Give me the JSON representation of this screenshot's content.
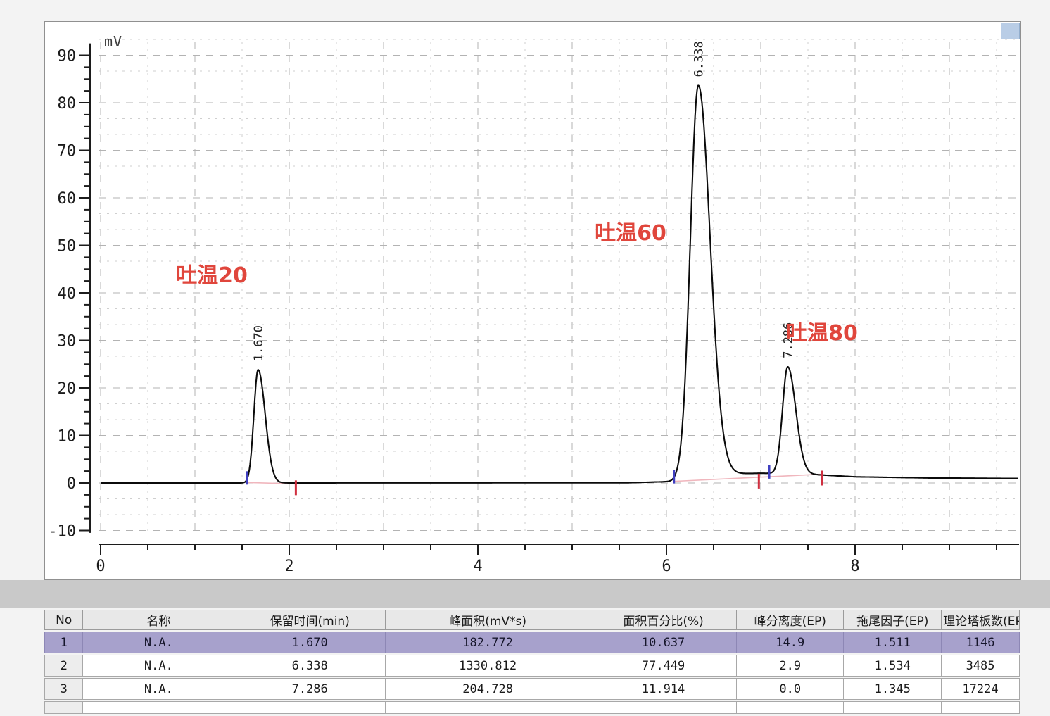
{
  "colors": {
    "trace": "#0b0b0b",
    "annotation_red": "#e0463c",
    "baseline_pink": "#f0b6bd",
    "start_marker_blue": "#3f3fc0",
    "end_marker_red": "#d02f3f",
    "grid_major": "#b3b3b3",
    "grid_minor": "#cfcfcf",
    "selected_row": "#a7a1cc"
  },
  "chart_data": {
    "type": "line",
    "title": "",
    "xlabel": "",
    "ylabel": "mV",
    "y_unit": "mV",
    "xlim": [
      0,
      9.74
    ],
    "ylim": [
      -10,
      93
    ],
    "x_ticks": [
      0,
      2,
      4,
      6,
      8
    ],
    "x_minor_step": 0.5,
    "y_ticks": [
      -10,
      0,
      10,
      20,
      30,
      40,
      50,
      60,
      70,
      80,
      90
    ],
    "y_minor_step": 2.5,
    "grid": "dashed",
    "peaks": [
      {
        "label": "1.670",
        "retention_time": 1.67,
        "height_mV": 23.8,
        "sigma_left": 0.045,
        "sigma_right": 0.075
      },
      {
        "label": "6.338",
        "retention_time": 6.338,
        "height_mV": 82.5,
        "sigma_left": 0.085,
        "sigma_right": 0.125
      },
      {
        "label": "7.286",
        "retention_time": 7.286,
        "height_mV": 22.5,
        "sigma_left": 0.055,
        "sigma_right": 0.085
      }
    ],
    "baseline_points": [
      [
        0,
        0
      ],
      [
        5.6,
        0.05
      ],
      [
        6.05,
        0.3
      ],
      [
        6.6,
        1.9
      ],
      [
        7.0,
        2.05
      ],
      [
        7.45,
        1.9
      ],
      [
        8.0,
        1.3
      ],
      [
        8.8,
        1.05
      ],
      [
        9.73,
        0.95
      ]
    ],
    "annotations": [
      {
        "text": "吐温20",
        "t": 0.8,
        "mV": 42.2
      },
      {
        "text": "吐温60",
        "t": 5.24,
        "mV": 51.1
      },
      {
        "text": "吐温80",
        "t": 7.27,
        "mV": 30.1
      }
    ],
    "integration": {
      "baselines": [
        {
          "from": [
            1.553,
            0.1
          ],
          "to": [
            2.07,
            -0.2
          ]
        },
        {
          "from": [
            6.08,
            0.35
          ],
          "to": [
            7.65,
            1.85
          ]
        }
      ],
      "start_markers": [
        {
          "t": 1.553,
          "v": 0.1
        },
        {
          "t": 6.08,
          "v": 0.35
        },
        {
          "t": 7.09,
          "v": 1.35
        }
      ],
      "end_markers": [
        {
          "t": 2.07,
          "v": -0.2
        },
        {
          "t": 6.98,
          "v": 1.2
        },
        {
          "t": 7.65,
          "v": 1.85
        }
      ]
    }
  },
  "table": {
    "columns": [
      "No",
      "名称",
      "保留时间(min)",
      "峰面积(mV*s)",
      "面积百分比(%)",
      "峰分离度(EP)",
      "拖尾因子(EP)",
      "理论塔板数(EP)"
    ],
    "column_widths": [
      "4%",
      "15.5%",
      "15.5%",
      "21%",
      "15%",
      "11%",
      "10%",
      "8%"
    ],
    "rows": [
      [
        "1",
        "N.A.",
        "1.670",
        "182.772",
        "10.637",
        "14.9",
        "1.511",
        "1146"
      ],
      [
        "2",
        "N.A.",
        "6.338",
        "1330.812",
        "77.449",
        "2.9",
        "1.534",
        "3485"
      ],
      [
        "3",
        "N.A.",
        "7.286",
        "204.728",
        "11.914",
        "0.0",
        "1.345",
        "17224"
      ]
    ],
    "selected_row_index": 0,
    "has_partial_empty_row": true
  }
}
